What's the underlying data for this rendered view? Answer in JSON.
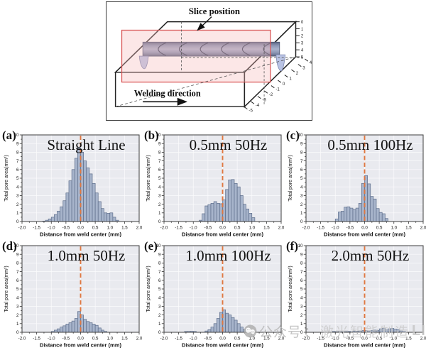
{
  "diagram": {
    "slice_position_label": "Slice position",
    "welding_direction_label": "Welding direction",
    "depth_ticks": [
      "0",
      "1",
      "2",
      "3",
      "4",
      "5"
    ],
    "width_ticks": [
      "4",
      "3",
      "2",
      "1",
      "0",
      "-1",
      "-2",
      "-3",
      "-4",
      "-5"
    ]
  },
  "axes": {
    "ylabel": "Total pore area(mm²)",
    "xlabel": "Distance from weld center (mm)",
    "xlim": [
      -2,
      2
    ],
    "ylim": [
      0,
      10
    ],
    "xticks": [
      -2.0,
      -1.5,
      -1.0,
      -0.5,
      0.0,
      0.5,
      1.0,
      1.5,
      2.0
    ],
    "xtick_labels": [
      "-2.0",
      "-1.5",
      "-1.0",
      "-0.5",
      "0.0",
      "0.5",
      "1.0",
      "1.5",
      "2.0"
    ],
    "yticks": [
      0,
      1,
      2,
      3,
      4,
      5,
      6,
      7,
      8,
      9,
      10
    ],
    "ytick_labels": [
      "0",
      "1",
      "2",
      "3",
      "4",
      "5",
      "6",
      "7",
      "8",
      "9",
      "10"
    ],
    "grid": true,
    "center_line_x": 0
  },
  "colors": {
    "bar_fill": "#a7b4cb",
    "bar_edge": "#5f6f8c",
    "plot_bg": "#e9eaef",
    "dashed_line": "#df7740",
    "grid": "#ffffff",
    "border": "#3c3c3c"
  },
  "chart_data": [
    {
      "type": "bar",
      "label": "(a)",
      "title": "Straight Line",
      "bin_width": 0.1,
      "bins": [
        [
          -1.25,
          0.05
        ],
        [
          -1.15,
          0.15
        ],
        [
          -1.05,
          0.3
        ],
        [
          -0.95,
          0.5
        ],
        [
          -0.85,
          0.8
        ],
        [
          -0.75,
          1.2
        ],
        [
          -0.65,
          1.7
        ],
        [
          -0.55,
          2.4
        ],
        [
          -0.45,
          3.3
        ],
        [
          -0.35,
          4.7
        ],
        [
          -0.25,
          6.0
        ],
        [
          -0.15,
          7.3
        ],
        [
          -0.05,
          8.5
        ],
        [
          0.05,
          8.0
        ],
        [
          0.15,
          7.0
        ],
        [
          0.25,
          6.2
        ],
        [
          0.35,
          5.5
        ],
        [
          0.45,
          4.4
        ],
        [
          0.55,
          3.3
        ],
        [
          0.65,
          2.3
        ],
        [
          0.75,
          1.5
        ],
        [
          0.85,
          1.0
        ],
        [
          0.95,
          0.95
        ],
        [
          1.05,
          1.0
        ],
        [
          1.15,
          0.5
        ],
        [
          1.25,
          0.15
        ]
      ]
    },
    {
      "type": "bar",
      "label": "(b)",
      "title": "0.5mm  50Hz",
      "bin_width": 0.1,
      "bins": [
        [
          -0.75,
          0.15
        ],
        [
          -0.65,
          0.9
        ],
        [
          -0.55,
          1.8
        ],
        [
          -0.45,
          1.95
        ],
        [
          -0.35,
          2.1
        ],
        [
          -0.25,
          2.3
        ],
        [
          -0.15,
          2.1
        ],
        [
          -0.05,
          2.05
        ],
        [
          0.05,
          2.5
        ],
        [
          0.15,
          3.7
        ],
        [
          0.25,
          4.8
        ],
        [
          0.35,
          4.85
        ],
        [
          0.45,
          4.4
        ],
        [
          0.55,
          4.0
        ],
        [
          0.65,
          3.0
        ],
        [
          0.75,
          2.0
        ],
        [
          0.85,
          1.45
        ],
        [
          0.95,
          0.95
        ],
        [
          1.05,
          0.45
        ]
      ]
    },
    {
      "type": "bar",
      "label": "(c)",
      "title": "0.5mm 100Hz",
      "bin_width": 0.1,
      "bins": [
        [
          -0.95,
          0.3
        ],
        [
          -0.85,
          1.1
        ],
        [
          -0.75,
          1.2
        ],
        [
          -0.65,
          1.65
        ],
        [
          -0.55,
          1.7
        ],
        [
          -0.45,
          1.55
        ],
        [
          -0.35,
          1.4
        ],
        [
          -0.25,
          1.55
        ],
        [
          -0.15,
          2.1
        ],
        [
          -0.05,
          4.4
        ],
        [
          0.05,
          5.3
        ],
        [
          0.15,
          4.35
        ],
        [
          0.25,
          2.9
        ],
        [
          0.35,
          2.6
        ],
        [
          0.45,
          1.5
        ],
        [
          0.55,
          1.05
        ],
        [
          0.65,
          0.9
        ],
        [
          0.75,
          0.35
        ]
      ]
    },
    {
      "type": "bar",
      "label": "(d)",
      "title": "1.0mm  50Hz",
      "bin_width": 0.1,
      "bins": [
        [
          -0.95,
          0.1
        ],
        [
          -0.85,
          0.25
        ],
        [
          -0.75,
          0.4
        ],
        [
          -0.65,
          0.6
        ],
        [
          -0.55,
          0.75
        ],
        [
          -0.45,
          0.95
        ],
        [
          -0.35,
          1.1
        ],
        [
          -0.25,
          1.3
        ],
        [
          -0.15,
          1.6
        ],
        [
          -0.05,
          2.4
        ],
        [
          0.05,
          2.0
        ],
        [
          0.15,
          1.5
        ],
        [
          0.25,
          1.25
        ],
        [
          0.35,
          1.1
        ],
        [
          0.45,
          0.95
        ],
        [
          0.55,
          0.8
        ],
        [
          0.65,
          0.5
        ],
        [
          0.75,
          0.25
        ],
        [
          0.85,
          0.1
        ]
      ]
    },
    {
      "type": "bar",
      "label": "(e)",
      "title": "1.0mm 100Hz",
      "bin_width": 0.1,
      "bins": [
        [
          -1.25,
          0.1
        ],
        [
          -1.15,
          0.1
        ],
        [
          -1.05,
          0.12
        ],
        [
          -0.95,
          0.1
        ],
        [
          -0.55,
          0.15
        ],
        [
          -0.45,
          0.3
        ],
        [
          -0.35,
          0.6
        ],
        [
          -0.25,
          1.0
        ],
        [
          -0.15,
          1.6
        ],
        [
          -0.05,
          2.3
        ],
        [
          0.05,
          2.6
        ],
        [
          0.15,
          2.2
        ],
        [
          0.25,
          2.0
        ],
        [
          0.35,
          1.7
        ],
        [
          0.45,
          1.4
        ],
        [
          0.55,
          1.0
        ],
        [
          0.65,
          0.6
        ],
        [
          0.75,
          0.3
        ]
      ]
    },
    {
      "type": "bar",
      "label": "(f)",
      "title": "2.0mm  50Hz",
      "bin_width": 0.1,
      "bins": [
        [
          -1.05,
          0.1
        ],
        [
          -0.95,
          0.05
        ],
        [
          -0.85,
          0.1
        ],
        [
          -0.75,
          0.05
        ],
        [
          -0.65,
          0.1
        ],
        [
          -0.55,
          0.1
        ],
        [
          -0.45,
          0.1
        ],
        [
          -0.35,
          0.15
        ],
        [
          -0.25,
          0.1
        ],
        [
          -0.15,
          0.15
        ],
        [
          -0.05,
          0.2
        ],
        [
          0.05,
          0.2
        ],
        [
          0.15,
          0.15
        ],
        [
          0.25,
          0.2
        ],
        [
          0.35,
          0.25
        ],
        [
          0.45,
          0.2
        ],
        [
          0.55,
          0.4
        ],
        [
          0.65,
          0.45
        ],
        [
          0.75,
          0.3
        ],
        [
          0.85,
          0.4
        ],
        [
          0.95,
          0.45
        ],
        [
          1.05,
          0.35
        ],
        [
          1.15,
          0.3
        ],
        [
          1.25,
          0.15
        ],
        [
          1.35,
          0.1
        ]
      ]
    }
  ],
  "watermark": {
    "icon": "wechat-icon",
    "account_label": "公众号",
    "separator": "：",
    "brand_cn": "激光智能制造",
    "brand_latin": "LIMA"
  }
}
